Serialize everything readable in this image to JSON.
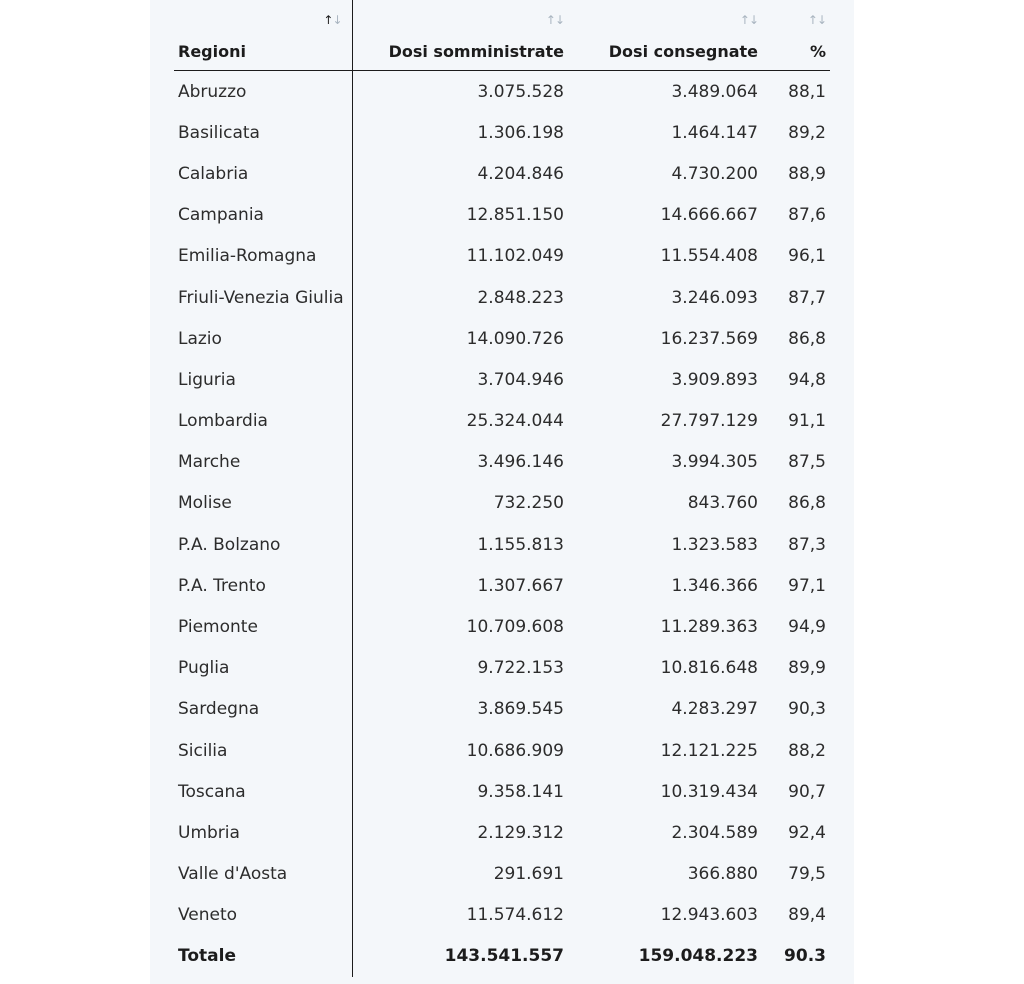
{
  "table": {
    "headers": {
      "region": "Regioni",
      "administered": "Dosi somministrate",
      "delivered": "Dosi consegnate",
      "percent": "%"
    },
    "sort_icon": "sort-arrows-icon",
    "rows": [
      {
        "region": "Abruzzo",
        "administered": "3.075.528",
        "delivered": "3.489.064",
        "percent": "88,1"
      },
      {
        "region": "Basilicata",
        "administered": "1.306.198",
        "delivered": "1.464.147",
        "percent": "89,2"
      },
      {
        "region": "Calabria",
        "administered": "4.204.846",
        "delivered": "4.730.200",
        "percent": "88,9"
      },
      {
        "region": "Campania",
        "administered": "12.851.150",
        "delivered": "14.666.667",
        "percent": "87,6"
      },
      {
        "region": "Emilia-Romagna",
        "administered": "11.102.049",
        "delivered": "11.554.408",
        "percent": "96,1"
      },
      {
        "region": "Friuli-Venezia Giulia",
        "administered": "2.848.223",
        "delivered": "3.246.093",
        "percent": "87,7"
      },
      {
        "region": "Lazio",
        "administered": "14.090.726",
        "delivered": "16.237.569",
        "percent": "86,8"
      },
      {
        "region": "Liguria",
        "administered": "3.704.946",
        "delivered": "3.909.893",
        "percent": "94,8"
      },
      {
        "region": "Lombardia",
        "administered": "25.324.044",
        "delivered": "27.797.129",
        "percent": "91,1"
      },
      {
        "region": "Marche",
        "administered": "3.496.146",
        "delivered": "3.994.305",
        "percent": "87,5"
      },
      {
        "region": "Molise",
        "administered": "732.250",
        "delivered": "843.760",
        "percent": "86,8"
      },
      {
        "region": "P.A. Bolzano",
        "administered": "1.155.813",
        "delivered": "1.323.583",
        "percent": "87,3"
      },
      {
        "region": "P.A. Trento",
        "administered": "1.307.667",
        "delivered": "1.346.366",
        "percent": "97,1"
      },
      {
        "region": "Piemonte",
        "administered": "10.709.608",
        "delivered": "11.289.363",
        "percent": "94,9"
      },
      {
        "region": "Puglia",
        "administered": "9.722.153",
        "delivered": "10.816.648",
        "percent": "89,9"
      },
      {
        "region": "Sardegna",
        "administered": "3.869.545",
        "delivered": "4.283.297",
        "percent": "90,3"
      },
      {
        "region": "Sicilia",
        "administered": "10.686.909",
        "delivered": "12.121.225",
        "percent": "88,2"
      },
      {
        "region": "Toscana",
        "administered": "9.358.141",
        "delivered": "10.319.434",
        "percent": "90,7"
      },
      {
        "region": "Umbria",
        "administered": "2.129.312",
        "delivered": "2.304.589",
        "percent": "92,4"
      },
      {
        "region": "Valle d'Aosta",
        "administered": "291.691",
        "delivered": "366.880",
        "percent": "79,5"
      },
      {
        "region": "Veneto",
        "administered": "11.574.612",
        "delivered": "12.943.603",
        "percent": "89,4"
      }
    ],
    "total": {
      "region": "Totale",
      "administered": "143.541.557",
      "delivered": "159.048.223",
      "percent": "90.3"
    }
  }
}
